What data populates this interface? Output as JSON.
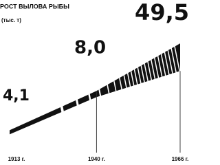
{
  "chart_data": {
    "type": "wedge",
    "title": "РОСТ ВЫЛОВА РЫБЫ",
    "subtitle": "(тыс. т)",
    "categories": [
      "1913 г.",
      "1940 г.",
      "1966 г."
    ],
    "x": [
      1913,
      1940,
      1966
    ],
    "values": [
      4.1,
      8.0,
      49.5
    ],
    "value_labels": [
      "4,1",
      "8,0",
      "49,5"
    ],
    "color": "#111111"
  }
}
